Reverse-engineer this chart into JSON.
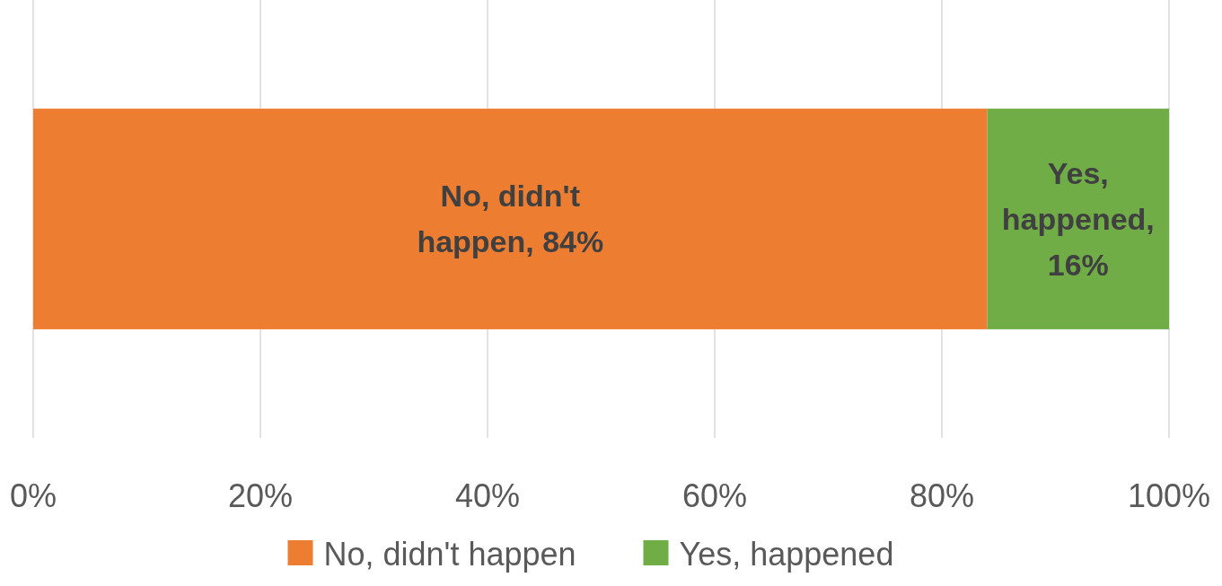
{
  "chart_data": {
    "type": "bar",
    "orientation": "horizontal",
    "stacked": true,
    "categories": [
      null
    ],
    "series": [
      {
        "name": "No, didn't happen",
        "color": "#ed7d31",
        "values": [
          84
        ],
        "value_labels": [
          "No, didn't happen, 84%"
        ]
      },
      {
        "name": "Yes, happened",
        "color": "#70ad47",
        "values": [
          16
        ],
        "value_labels": [
          "Yes, happened, 16%"
        ]
      }
    ],
    "xlim": [
      0,
      100
    ],
    "xticks": [
      {
        "value": 0,
        "label": "0%"
      },
      {
        "value": 20,
        "label": "20%"
      },
      {
        "value": 40,
        "label": "40%"
      },
      {
        "value": 60,
        "label": "60%"
      },
      {
        "value": 80,
        "label": "80%"
      },
      {
        "value": 100,
        "label": "100%"
      }
    ],
    "grid": "x",
    "legend": "bottom"
  }
}
